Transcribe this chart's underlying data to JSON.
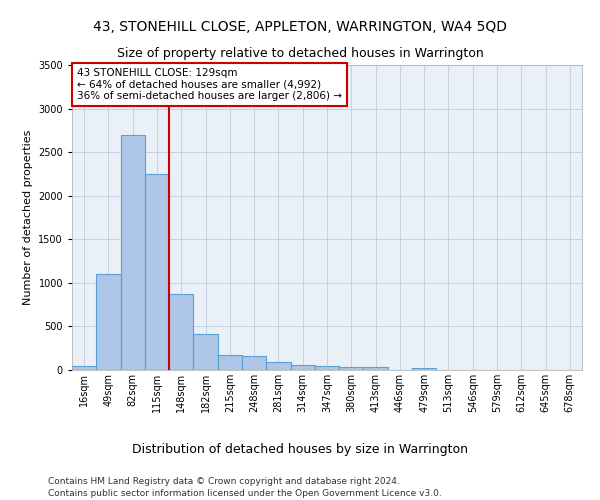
{
  "title": "43, STONEHILL CLOSE, APPLETON, WARRINGTON, WA4 5QD",
  "subtitle": "Size of property relative to detached houses in Warrington",
  "xlabel": "Distribution of detached houses by size in Warrington",
  "ylabel": "Number of detached properties",
  "categories": [
    "16sqm",
    "49sqm",
    "82sqm",
    "115sqm",
    "148sqm",
    "182sqm",
    "215sqm",
    "248sqm",
    "281sqm",
    "314sqm",
    "347sqm",
    "380sqm",
    "413sqm",
    "446sqm",
    "479sqm",
    "513sqm",
    "546sqm",
    "579sqm",
    "612sqm",
    "645sqm",
    "678sqm"
  ],
  "values": [
    50,
    1100,
    2700,
    2250,
    870,
    415,
    170,
    160,
    95,
    60,
    50,
    30,
    30,
    0,
    20,
    0,
    0,
    0,
    0,
    0,
    0
  ],
  "bar_color": "#aec6e8",
  "bar_edge_color": "#5a9fd4",
  "vline_color": "#cc0000",
  "annotation_text": "43 STONEHILL CLOSE: 129sqm\n← 64% of detached houses are smaller (4,992)\n36% of semi-detached houses are larger (2,806) →",
  "annotation_box_color": "#ffffff",
  "annotation_box_edge_color": "#cc0000",
  "ylim": [
    0,
    3500
  ],
  "yticks": [
    0,
    500,
    1000,
    1500,
    2000,
    2500,
    3000,
    3500
  ],
  "footer1": "Contains HM Land Registry data © Crown copyright and database right 2024.",
  "footer2": "Contains public sector information licensed under the Open Government Licence v3.0.",
  "plot_bg_color": "#eaf0f8",
  "title_fontsize": 10,
  "subtitle_fontsize": 9,
  "xlabel_fontsize": 9,
  "ylabel_fontsize": 8,
  "tick_fontsize": 7,
  "footer_fontsize": 6.5
}
